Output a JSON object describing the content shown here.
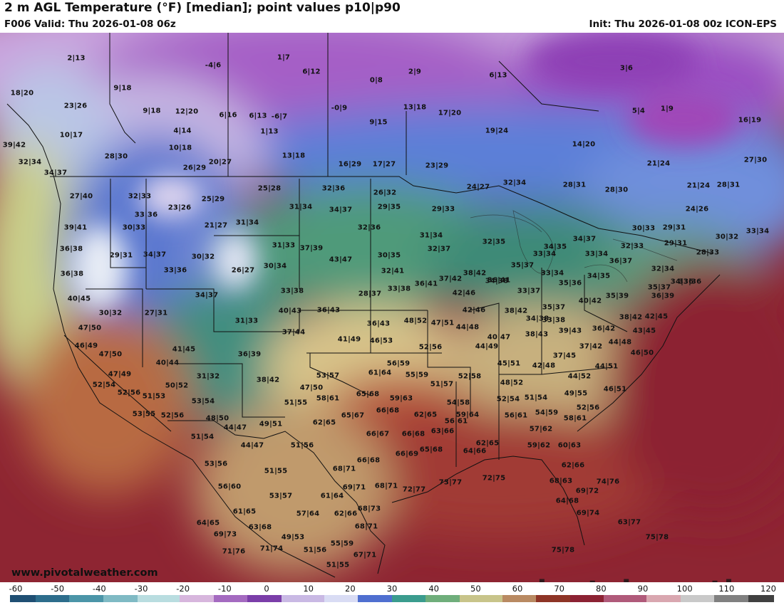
{
  "header": {
    "title": "2 m AGL Temperature (°F) [median]; point values p10|p90",
    "valid": "F006 Valid: Thu 2026-01-08 06z",
    "init": "Init: Thu 2026-01-08 00z ICON-EPS"
  },
  "branding": {
    "logo_text": "pivotal weather",
    "website": "www.pivotalweather.com"
  },
  "colorbar": {
    "ticks": [
      "-60",
      "-50",
      "-40",
      "-30",
      "-20",
      "-10",
      "0",
      "10",
      "20",
      "30",
      "40",
      "50",
      "60",
      "70",
      "80",
      "90",
      "100",
      "110",
      "120"
    ]
  },
  "points": [
    "2|13",
    "1|7",
    "-4|6",
    "6|12",
    "0|8",
    "2|9",
    "6|13",
    "3|6",
    "18|20",
    "9|18",
    "6|13",
    "-0|9",
    "13|18",
    "23|26",
    "9|18",
    "12|20",
    "6|16",
    "-6|7",
    "17|20",
    "5|4",
    "1|9",
    "10|17",
    "4|14",
    "1|13",
    "9|15",
    "19|24",
    "16|19",
    "39|42",
    "10|18",
    "28|30",
    "13|18",
    "16|29",
    "17|27",
    "23|29",
    "14|20",
    "21|24",
    "27|30",
    "32|34",
    "34|37",
    "26|29",
    "20|27",
    "27|40",
    "32|33",
    "23|26",
    "25|29",
    "25|28",
    "32|36",
    "26|32",
    "24|27",
    "32|34",
    "28|31",
    "28|30",
    "21|24",
    "28|31",
    "30|33",
    "31|34",
    "34|37",
    "29|35",
    "29|33",
    "24|26",
    "39|41",
    "33|36",
    "21|27",
    "31|34",
    "32|36",
    "31|34",
    "32|35",
    "30|33",
    "29|31",
    "30|32",
    "33|34",
    "36|38",
    "29|31",
    "34|37",
    "30|32",
    "31|33",
    "37|39",
    "43|47",
    "30|35",
    "32|37",
    "34|35",
    "34|37",
    "33|34",
    "33|34",
    "32|33",
    "29|31",
    "28|33",
    "36|37",
    "36|38",
    "33|36",
    "26|27",
    "30|34",
    "32|41",
    "37|42",
    "38|42",
    "34|38",
    "35|37",
    "33|34",
    "32|34",
    "35|36",
    "34|35",
    "34|36",
    "33|36",
    "35|37",
    "40|45",
    "34|37",
    "33|38",
    "28|37",
    "33|38",
    "36|41",
    "42|46",
    "36|41",
    "33|37",
    "35|37",
    "35|39",
    "40|42",
    "36|39",
    "30|32",
    "27|31",
    "40|43",
    "36|43",
    "42|46",
    "38|42",
    "33|38",
    "38|42",
    "42|45",
    "47|50",
    "31|33",
    "37|44",
    "36|43",
    "48|52",
    "47|51",
    "44|48",
    "34|38",
    "39|43",
    "36|42",
    "43|45",
    "46|49",
    "41|49",
    "46|53",
    "52|56",
    "40|47",
    "38|43",
    "37|42",
    "44|48",
    "47|50",
    "41|45",
    "36|39",
    "44|49",
    "37|45",
    "46|50",
    "40|44",
    "56|59",
    "45|51",
    "42|48",
    "44|51",
    "47|49",
    "31|32",
    "38|42",
    "53|57",
    "61|64",
    "55|59",
    "52|58",
    "44|52",
    "52|54",
    "50|52",
    "47|50",
    "51|57",
    "48|52",
    "46|51",
    "52|56",
    "51|53",
    "53|54",
    "51|55",
    "58|61",
    "65|68",
    "59|63",
    "54|58",
    "52|54",
    "51|54",
    "49|55",
    "53|55",
    "52|56",
    "48|50",
    "65|67",
    "66|68",
    "62|65",
    "56|61",
    "56|61",
    "54|59",
    "52|56",
    "51|54",
    "44|47",
    "49|51",
    "62|65",
    "59|64",
    "57|62",
    "58|61",
    "44|47",
    "51|56",
    "66|67",
    "66|68",
    "63|66",
    "62|65",
    "59|62",
    "60|63",
    "53|56",
    "66|68",
    "66|69",
    "65|68",
    "64|66",
    "62|66",
    "51|55",
    "68|71",
    "72|75",
    "73|77",
    "72|77",
    "68|63",
    "56|60",
    "69|71",
    "68|71",
    "69|72",
    "74|76",
    "53|57",
    "61|64",
    "68|73",
    "64|68",
    "69|74",
    "61|65",
    "57|64",
    "62|66",
    "63|77",
    "64|65",
    "63|68",
    "49|53",
    "68|71",
    "75|78",
    "69|73",
    "71|74",
    "51|56",
    "55|59",
    "75|78",
    "71|76",
    "67|71",
    "51|55"
  ]
}
